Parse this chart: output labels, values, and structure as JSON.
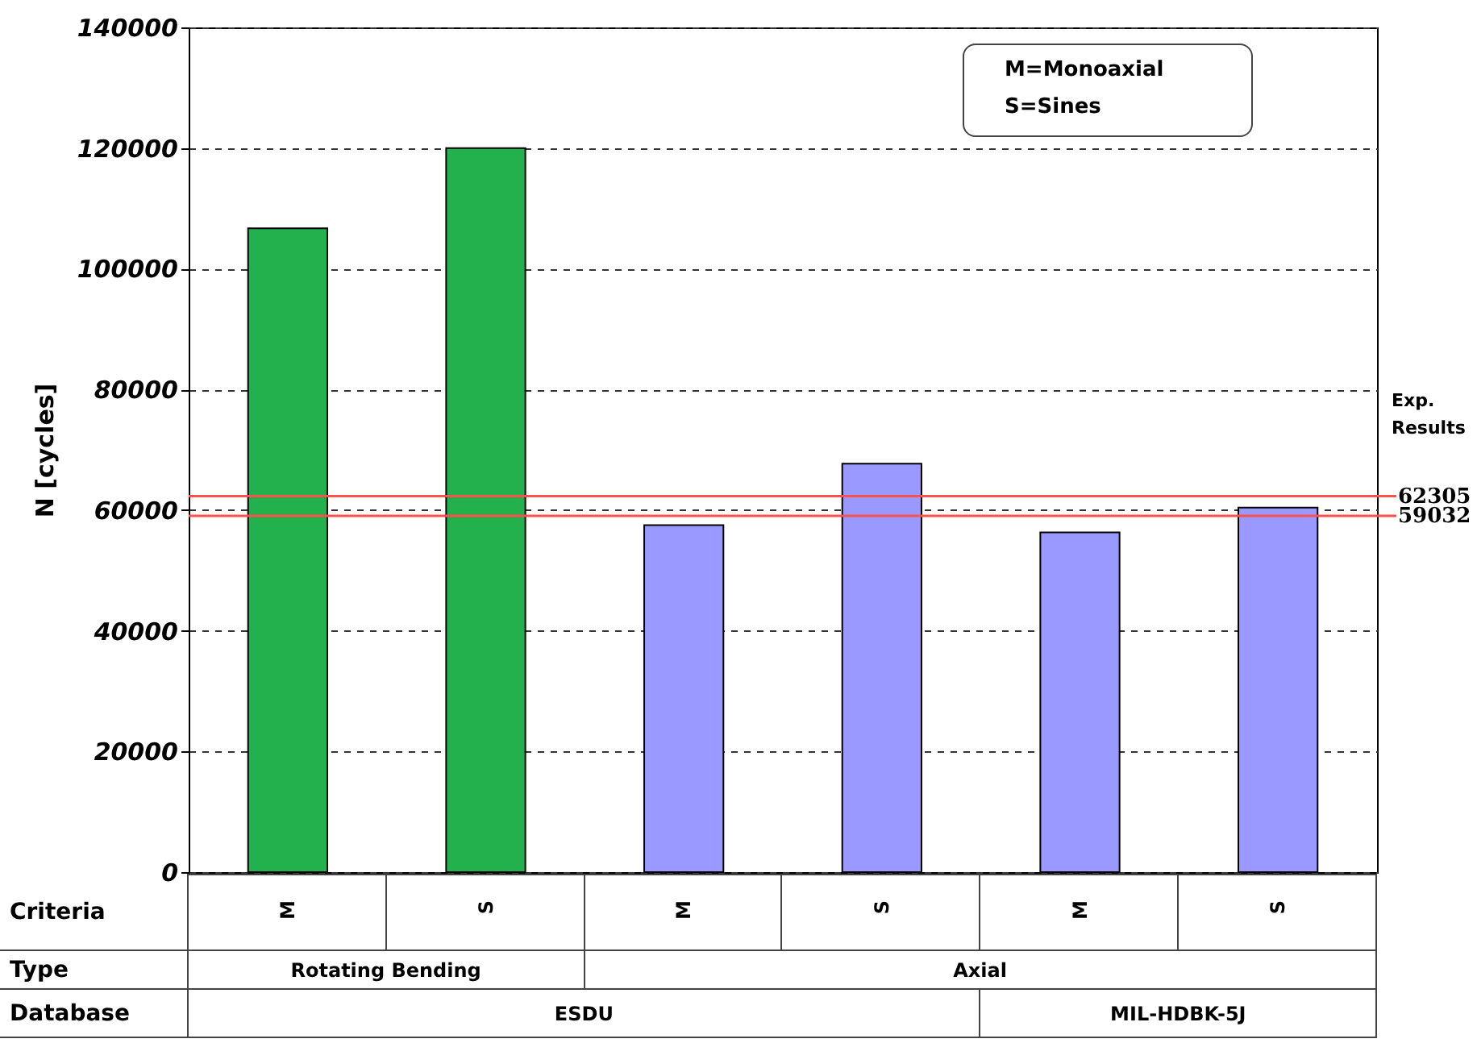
{
  "chart_data": {
    "type": "bar",
    "ylabel": "N [cycles]",
    "categories": [
      "M",
      "S",
      "M",
      "S",
      "M",
      "S"
    ],
    "values": [
      106700,
      120000,
      57500,
      67700,
      56300,
      60400
    ],
    "colors": [
      "#22b14c",
      "#22b14c",
      "#9999ff",
      "#9999ff",
      "#9999ff",
      "#9999ff"
    ],
    "ylim": [
      0,
      140000
    ],
    "yticks": [
      0,
      20000,
      40000,
      60000,
      80000,
      100000,
      120000,
      140000
    ],
    "grid": "y",
    "ref_lines": [
      {
        "axis": "y",
        "value": 62305,
        "label": "62305",
        "color": "#ff5050"
      },
      {
        "axis": "y",
        "value": 59032,
        "label": "59032",
        "color": "#ff5050"
      }
    ],
    "annotations": [
      "M=Monoaxial",
      "S=Sines",
      "Exp. Results",
      "Criteria",
      "Type",
      "Rotating Bending",
      "Axial",
      "Database",
      "ESDU",
      "MIL-HDBK-5J"
    ]
  }
}
